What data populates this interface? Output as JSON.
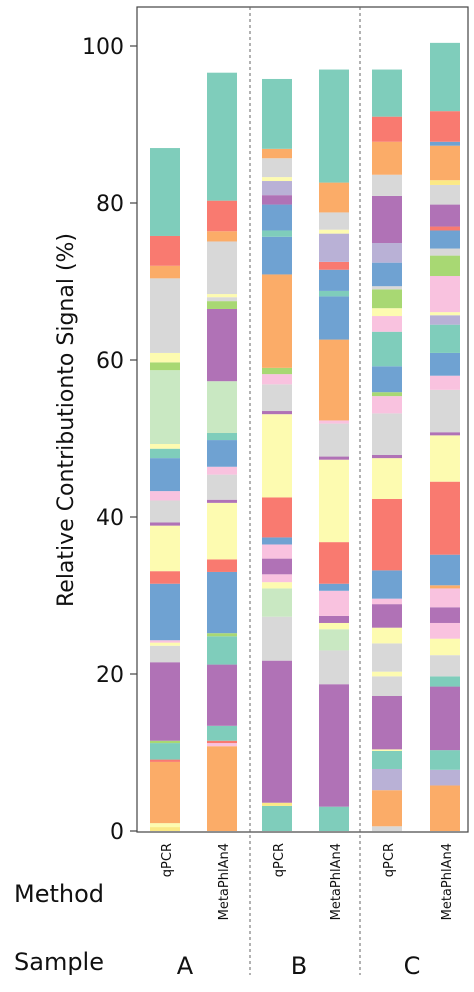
{
  "chart_data": {
    "type": "bar",
    "stacked": true,
    "ylabel": "Relative Contributionto Signal (%)",
    "ylim": [
      0,
      100
    ],
    "yticks": [
      0,
      20,
      40,
      60,
      80,
      100
    ],
    "grid": false,
    "row_labels": {
      "method": "Method",
      "sample": "Sample"
    },
    "categories": [
      {
        "sample": "A",
        "method": "qPCR"
      },
      {
        "sample": "A",
        "method": "MetaPhlAn4"
      },
      {
        "sample": "B",
        "method": "qPCR"
      },
      {
        "sample": "B",
        "method": "MetaPhlAn4"
      },
      {
        "sample": "C",
        "method": "qPCR"
      },
      {
        "sample": "C",
        "method": "MetaPhlAn4"
      }
    ],
    "samples": [
      "A",
      "B",
      "C"
    ],
    "palette": {
      "teal": "#7fcdbb",
      "orange": "#fbac68",
      "purple": "#b072b6",
      "blue": "#6fa2d2",
      "gray": "#d8d8d8",
      "yellow": "#fdfbb0",
      "salmon": "#f97a70",
      "pink": "#f9c2df",
      "lightgreen": "#c9e8c2",
      "green": "#a8d873",
      "lavender": "#b9b1d6",
      "lightyellow": "#fbe985"
    },
    "bars": [
      {
        "segments": [
          [
            "lightyellow",
            0.5
          ],
          [
            "yellow",
            0.5
          ],
          [
            "orange",
            7.8
          ],
          [
            "salmon",
            0.3
          ],
          [
            "teal",
            2.1
          ],
          [
            "green",
            0.3
          ],
          [
            "purple",
            10.0
          ],
          [
            "gray",
            2.1
          ],
          [
            "yellow",
            0.4
          ],
          [
            "pink",
            0.3
          ],
          [
            "blue",
            7.2
          ],
          [
            "salmon",
            1.6
          ],
          [
            "yellow",
            5.8
          ],
          [
            "purple",
            0.4
          ],
          [
            "gray",
            2.8
          ],
          [
            "pink",
            1.2
          ],
          [
            "blue",
            4.2
          ],
          [
            "teal",
            1.2
          ],
          [
            "yellow",
            0.6
          ],
          [
            "lightgreen",
            9.4
          ],
          [
            "green",
            1.0
          ],
          [
            "yellow",
            1.2
          ],
          [
            "gray",
            9.5
          ],
          [
            "orange",
            1.6
          ],
          [
            "salmon",
            3.8
          ],
          [
            "teal",
            11.2
          ]
        ]
      },
      {
        "segments": [
          [
            "orange",
            10.8
          ],
          [
            "pink",
            0.4
          ],
          [
            "salmon",
            0.3
          ],
          [
            "teal",
            1.9
          ],
          [
            "purple",
            7.8
          ],
          [
            "teal",
            3.6
          ],
          [
            "green",
            0.4
          ],
          [
            "blue",
            7.8
          ],
          [
            "salmon",
            1.6
          ],
          [
            "yellow",
            7.2
          ],
          [
            "purple",
            0.4
          ],
          [
            "gray",
            3.2
          ],
          [
            "pink",
            1.0
          ],
          [
            "blue",
            3.4
          ],
          [
            "teal",
            0.9
          ],
          [
            "lightgreen",
            6.6
          ],
          [
            "purple",
            9.2
          ],
          [
            "green",
            1.0
          ],
          [
            "gray",
            0.5
          ],
          [
            "yellow",
            0.4
          ],
          [
            "gray",
            6.7
          ],
          [
            "orange",
            1.3
          ],
          [
            "salmon",
            3.9
          ],
          [
            "teal",
            16.3
          ]
        ]
      },
      {
        "segments": [
          [
            "teal",
            3.2
          ],
          [
            "lightyellow",
            0.4
          ],
          [
            "purple",
            18.1
          ],
          [
            "gray",
            5.6
          ],
          [
            "lightgreen",
            3.6
          ],
          [
            "yellow",
            0.8
          ],
          [
            "pink",
            1.0
          ],
          [
            "purple",
            2.0
          ],
          [
            "pink",
            1.8
          ],
          [
            "blue",
            0.9
          ],
          [
            "salmon",
            5.1
          ],
          [
            "yellow",
            10.6
          ],
          [
            "purple",
            0.4
          ],
          [
            "gray",
            3.4
          ],
          [
            "pink",
            1.3
          ],
          [
            "green",
            0.8
          ],
          [
            "orange",
            11.9
          ],
          [
            "blue",
            4.8
          ],
          [
            "teal",
            0.8
          ],
          [
            "blue",
            3.3
          ],
          [
            "purple",
            1.2
          ],
          [
            "lavender",
            1.8
          ],
          [
            "yellow",
            0.5
          ],
          [
            "gray",
            2.4
          ],
          [
            "orange",
            1.2
          ],
          [
            "teal",
            8.9
          ]
        ]
      },
      {
        "segments": [
          [
            "teal",
            3.1
          ],
          [
            "purple",
            15.6
          ],
          [
            "gray",
            4.3
          ],
          [
            "lightgreen",
            2.7
          ],
          [
            "yellow",
            0.8
          ],
          [
            "purple",
            0.9
          ],
          [
            "pink",
            3.2
          ],
          [
            "blue",
            0.9
          ],
          [
            "salmon",
            5.3
          ],
          [
            "yellow",
            10.5
          ],
          [
            "purple",
            0.4
          ],
          [
            "gray",
            4.2
          ],
          [
            "pink",
            0.4
          ],
          [
            "orange",
            10.3
          ],
          [
            "blue",
            5.5
          ],
          [
            "teal",
            0.7
          ],
          [
            "blue",
            2.7
          ],
          [
            "salmon",
            1.0
          ],
          [
            "lavender",
            3.6
          ],
          [
            "yellow",
            0.5
          ],
          [
            "gray",
            2.2
          ],
          [
            "orange",
            3.8
          ],
          [
            "teal",
            14.4
          ]
        ]
      },
      {
        "segments": [
          [
            "gray",
            0.6
          ],
          [
            "orange",
            4.6
          ],
          [
            "lavender",
            2.7
          ],
          [
            "teal",
            2.3
          ],
          [
            "yellow",
            0.2
          ],
          [
            "purple",
            6.8
          ],
          [
            "gray",
            2.5
          ],
          [
            "yellow",
            0.6
          ],
          [
            "gray",
            3.6
          ],
          [
            "yellow",
            2.0
          ],
          [
            "purple",
            3.0
          ],
          [
            "pink",
            0.7
          ],
          [
            "blue",
            3.6
          ],
          [
            "salmon",
            9.1
          ],
          [
            "yellow",
            5.2
          ],
          [
            "purple",
            0.4
          ],
          [
            "gray",
            5.3
          ],
          [
            "pink",
            2.2
          ],
          [
            "green",
            0.5
          ],
          [
            "blue",
            3.3
          ],
          [
            "teal",
            4.4
          ],
          [
            "pink",
            2.0
          ],
          [
            "yellow",
            1.0
          ],
          [
            "green",
            2.4
          ],
          [
            "gray",
            0.4
          ],
          [
            "blue",
            3.0
          ],
          [
            "lavender",
            2.5
          ],
          [
            "purple",
            6.0
          ],
          [
            "gray",
            2.7
          ],
          [
            "orange",
            4.2
          ],
          [
            "salmon",
            3.2
          ],
          [
            "teal",
            6.0
          ]
        ]
      },
      {
        "segments": [
          [
            "orange",
            5.8
          ],
          [
            "lavender",
            2.0
          ],
          [
            "teal",
            2.5
          ],
          [
            "purple",
            8.1
          ],
          [
            "teal",
            1.3
          ],
          [
            "gray",
            2.7
          ],
          [
            "yellow",
            2.1
          ],
          [
            "pink",
            2.0
          ],
          [
            "purple",
            2.0
          ],
          [
            "pink",
            2.4
          ],
          [
            "orange",
            0.4
          ],
          [
            "blue",
            3.9
          ],
          [
            "salmon",
            9.3
          ],
          [
            "yellow",
            5.9
          ],
          [
            "purple",
            0.4
          ],
          [
            "gray",
            5.4
          ],
          [
            "pink",
            1.8
          ],
          [
            "blue",
            2.9
          ],
          [
            "teal",
            3.6
          ],
          [
            "lavender",
            1.2
          ],
          [
            "yellow",
            0.4
          ],
          [
            "pink",
            4.6
          ],
          [
            "green",
            2.6
          ],
          [
            "gray",
            0.9
          ],
          [
            "blue",
            2.3
          ],
          [
            "salmon",
            0.5
          ],
          [
            "purple",
            2.8
          ],
          [
            "gray",
            2.5
          ],
          [
            "lightyellow",
            0.6
          ],
          [
            "orange",
            4.4
          ],
          [
            "blue",
            0.5
          ],
          [
            "salmon",
            3.9
          ],
          [
            "teal",
            8.7
          ]
        ]
      }
    ]
  }
}
